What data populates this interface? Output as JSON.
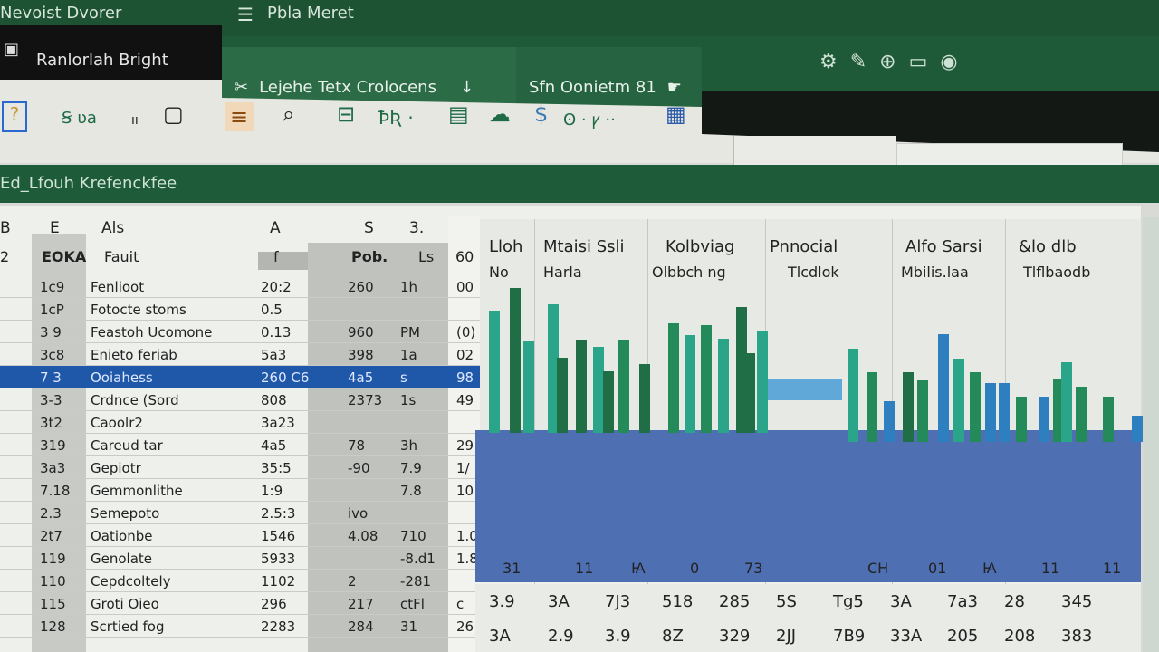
{
  "titlebar": {
    "left_text": "Nevoist Dvorer",
    "doc_title": "Pbla Meret"
  },
  "account": {
    "label": "Ranlorlah Bright"
  },
  "tabs": [
    {
      "label": "Lejehe Tetx Crolocens"
    },
    {
      "label": "Sfn Oonietm 81"
    }
  ],
  "toolbar": {
    "icons": [
      "help-icon",
      "format-icon",
      "more-icon",
      "frame-icon",
      "list-icon",
      "search-icon",
      "chart-icon",
      "function-icon",
      "table-icon",
      "cloud-icon",
      "dollar-icon",
      "filter-icon",
      "grid-icon"
    ],
    "labels": [
      "Ꞩ ʋa",
      "ıı",
      "Ꙍ.",
      "ꝤƦ ·",
      "ʘ · ꝩ ··"
    ]
  },
  "sheetbar": {
    "label": "Ed_Lfouh Krefenckfee"
  },
  "sheet": {
    "col_headers": [
      "B",
      "E",
      "Als",
      "A",
      "S",
      "3."
    ],
    "sub_headers": [
      "2",
      "EOKA",
      "Fauit",
      "f",
      "Pob.",
      "Ls",
      "60"
    ],
    "rows": [
      [
        "1c9",
        "Fenlioot",
        "20:2",
        "260",
        "1h",
        "00"
      ],
      [
        "1cP",
        "Fotocte stoms",
        "0.5",
        "",
        "",
        ""
      ],
      [
        "3 9",
        "Feastoh Ucomone",
        "0.13",
        "960",
        "PM",
        "(0)"
      ],
      [
        "3c8",
        "Enieto feriab",
        "5a3",
        "398",
        "1a",
        "02"
      ],
      [
        "7 3",
        "Ooiahess",
        "260 C6",
        "4a5",
        "s",
        "98"
      ],
      [
        "3-3",
        "Crdnce (Sord",
        "808",
        "2373",
        "1s",
        "49"
      ],
      [
        "3t2",
        "Caoolr2",
        "3a23",
        "",
        "",
        ""
      ],
      [
        "319",
        "Careud tar",
        "4a5",
        "78",
        "3h",
        "29"
      ],
      [
        "3a3",
        "Gepiotr",
        "35:5",
        "-90",
        "7.9",
        "1/"
      ],
      [
        "7.18",
        "Gemmonlithe",
        "1:9",
        "",
        "7.8",
        "10"
      ],
      [
        "2.3",
        "Semepoto",
        "2.5:3",
        "ivo",
        "",
        ""
      ],
      [
        "2t7",
        "Oationbe",
        "1546",
        "4.08",
        "710",
        "1.0"
      ],
      [
        "119",
        "Genolate",
        "5933",
        "",
        "-8.d1",
        "1.8"
      ],
      [
        "110",
        "Cepdcoltely",
        "1102",
        "2",
        "-281",
        ""
      ],
      [
        "115",
        "Groti Oieo",
        "296",
        "217",
        "ctFl",
        "c"
      ],
      [
        "128",
        "Scrtied fog",
        "2283",
        "284",
        "31",
        "26"
      ]
    ],
    "selected_row": 4
  },
  "chart_panel": {
    "headers": [
      {
        "top": "Lloh",
        "bottom": "No"
      },
      {
        "top": "Mtaisi Ssli",
        "bottom": "Harla"
      },
      {
        "top": "Kolbviag",
        "bottom": "Olbbch ng"
      },
      {
        "top": "Pnnocial",
        "bottom": "Tlcdlok"
      },
      {
        "top": "Alfo Sarsi",
        "bottom": "Mbilis.laa"
      },
      {
        "top": "&lo dlb",
        "bottom": "Tlflbaodb"
      }
    ],
    "band_labels": [
      "31",
      "11",
      "Ꙗ",
      "0",
      "73",
      "CH",
      "01",
      "Ꙗ",
      "11",
      "11"
    ],
    "totals_row_1": [
      "3.9",
      "3A",
      "7J3",
      "518",
      "285",
      "5S",
      "Tg5",
      "3A",
      "7a3",
      "28",
      "345"
    ],
    "totals_row_2": [
      "3A",
      "2.9",
      "3.9",
      "8Z",
      "329",
      "2JJ",
      "7B9",
      "33A",
      "205",
      "208",
      "383"
    ],
    "bars": [
      75,
      89,
      56,
      79,
      46,
      57,
      53,
      38,
      57,
      42,
      67,
      60,
      66,
      58,
      77,
      49,
      63,
      57,
      43,
      25,
      43,
      38,
      66,
      51,
      43,
      36,
      36,
      28,
      28,
      39,
      49,
      34,
      28,
      16
    ],
    "colors": {
      "dark_green": "#1f6e45",
      "teal": "#2aa58a",
      "green": "#258a5a",
      "blue": "#2d7fc0",
      "band": "#4f6fb3",
      "accent": "#1f58a8"
    }
  }
}
